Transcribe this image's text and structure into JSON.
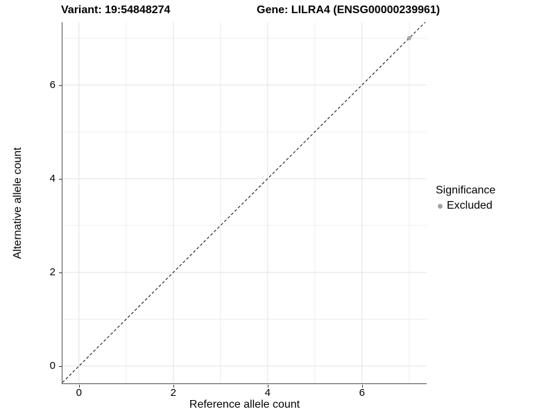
{
  "chart_data": {
    "type": "scatter",
    "title_left": "Variant: 19:54848274",
    "title_right": "Gene: LILRA4 (ENSG00000239961)",
    "xlabel": "Reference allele count",
    "ylabel": "Alternative allele count",
    "xlim": [
      -0.35,
      7.37
    ],
    "ylim": [
      -0.37,
      7.34
    ],
    "x_major_ticks": [
      0,
      2,
      4,
      6
    ],
    "x_minor_ticks": [
      1,
      3,
      5,
      7
    ],
    "y_major_ticks": [
      0,
      2,
      4,
      6
    ],
    "y_minor_ticks": [
      1,
      3,
      5,
      7
    ],
    "grid": true,
    "reference_line": {
      "slope": 1,
      "intercept": 0,
      "style": "dashed",
      "color": "#000000"
    },
    "series": [
      {
        "name": "Excluded",
        "color": "#9c9c9c",
        "opacity": 0.8,
        "points": [
          {
            "x": 7,
            "y": 7
          }
        ]
      }
    ],
    "legend": {
      "title": "Significance",
      "position": "right",
      "items": [
        {
          "label": "Excluded",
          "color": "#a3a3a3"
        }
      ]
    },
    "colors": {
      "grid_major": "#e2e2e2",
      "grid_minor": "#ededed",
      "axis_line": "#4d4d4d",
      "tick_mark": "#333333",
      "text": "#000000"
    }
  }
}
